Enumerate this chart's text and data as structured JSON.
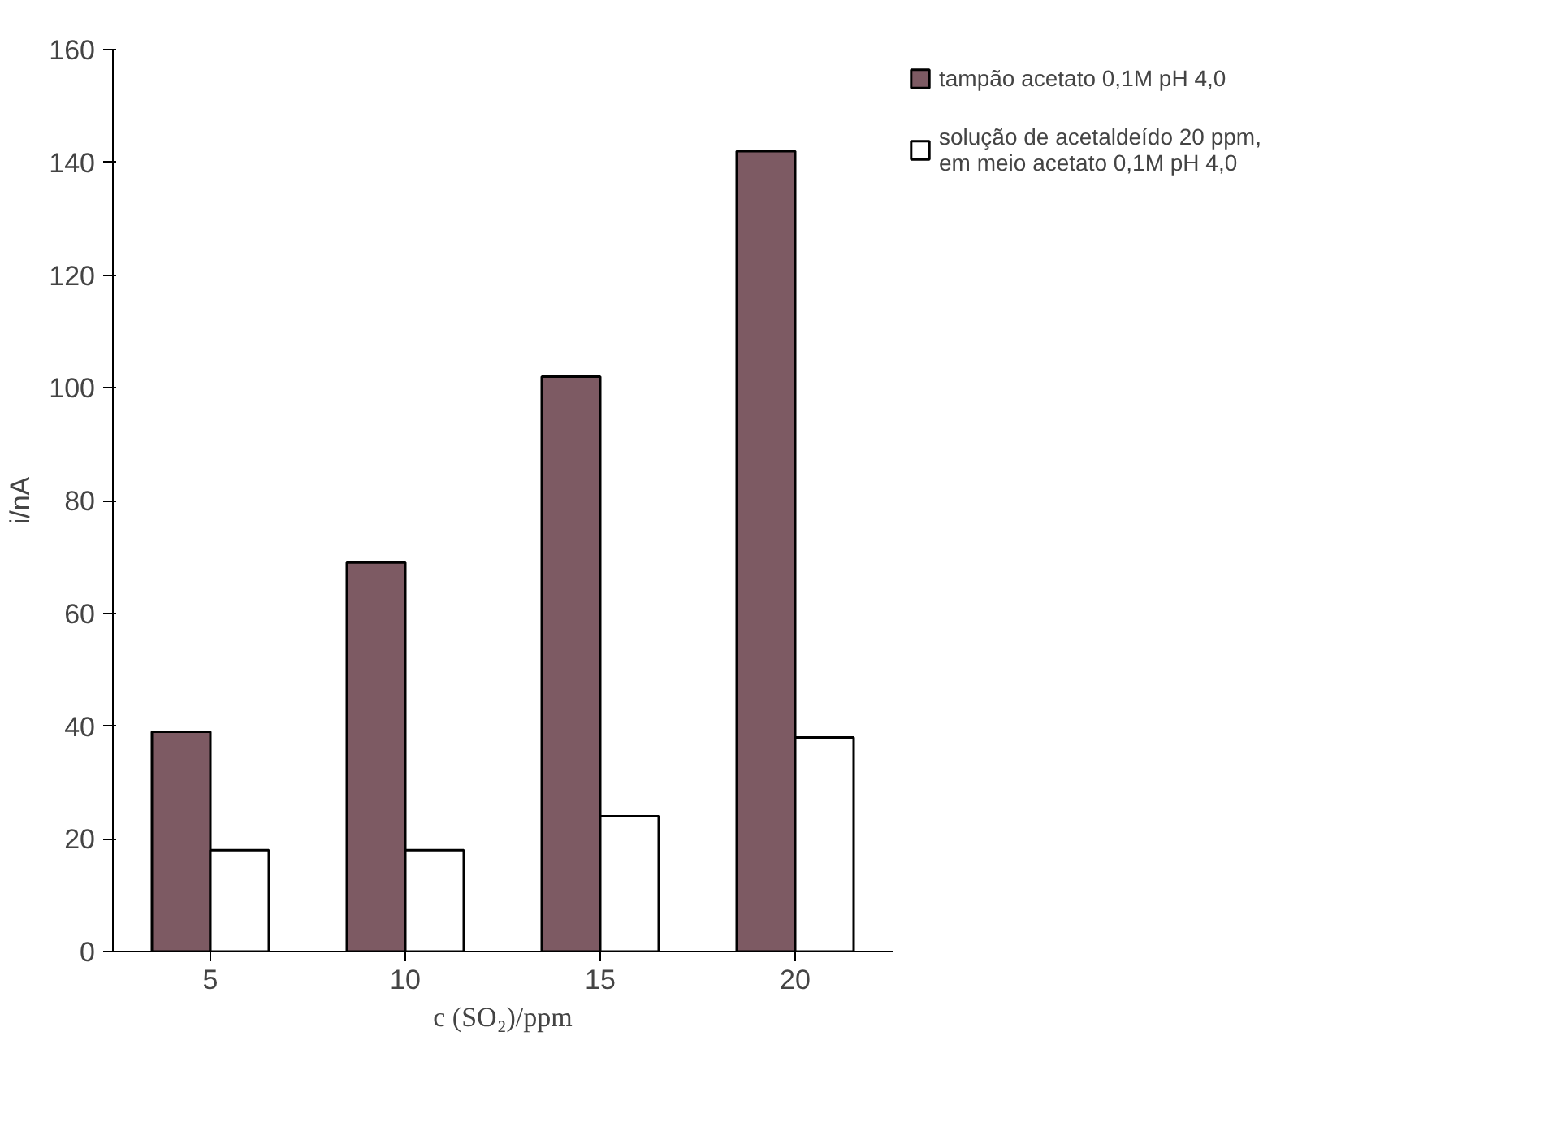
{
  "chart_data": {
    "type": "bar",
    "xlabel": "c (SO₂)/ppm",
    "ylabel": "i/nA",
    "categories": [
      "5",
      "10",
      "15",
      "20"
    ],
    "series": [
      {
        "name": "tampão acetato 0,1M pH 4,0",
        "color": "#7d5a63",
        "values": [
          39,
          69,
          102,
          142
        ]
      },
      {
        "name": "solução de acetaldeído 20 ppm, em meio acetato 0,1M pH 4,0",
        "color": "#ffffff",
        "values": [
          18,
          18,
          24,
          38
        ]
      }
    ],
    "ylim": [
      0,
      160
    ],
    "yticks": [
      0,
      20,
      40,
      60,
      80,
      100,
      120,
      140,
      160
    ],
    "grid": false,
    "legend": "top right"
  }
}
